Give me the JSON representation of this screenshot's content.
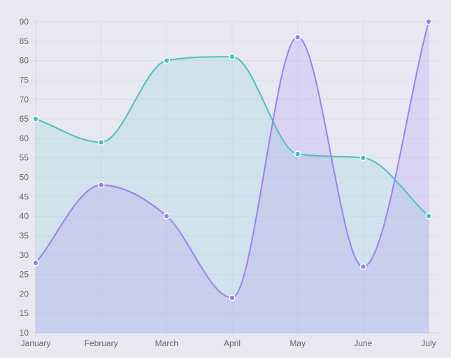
{
  "chart_data": {
    "type": "area",
    "categories": [
      "January",
      "February",
      "March",
      "April",
      "May",
      "June",
      "July"
    ],
    "series": [
      {
        "values": [
          65,
          59,
          80,
          81,
          56,
          55,
          40
        ],
        "line_color": "#4bc0c0",
        "fill_color": "#4bc0c0"
      },
      {
        "values": [
          28,
          48,
          40,
          19,
          86,
          27,
          90
        ],
        "line_color": "#9a80ea",
        "fill_color": "#a48cf0"
      }
    ],
    "ylim": [
      10,
      90
    ],
    "y_ticks": [
      10,
      15,
      20,
      25,
      30,
      35,
      40,
      45,
      50,
      55,
      60,
      65,
      70,
      75,
      80,
      85,
      90
    ],
    "grid": true,
    "smooth": true,
    "legend": "none",
    "colors": {
      "background": "#e8e8f2",
      "grid": "#dcdce6",
      "tick_text": "#666666"
    }
  }
}
